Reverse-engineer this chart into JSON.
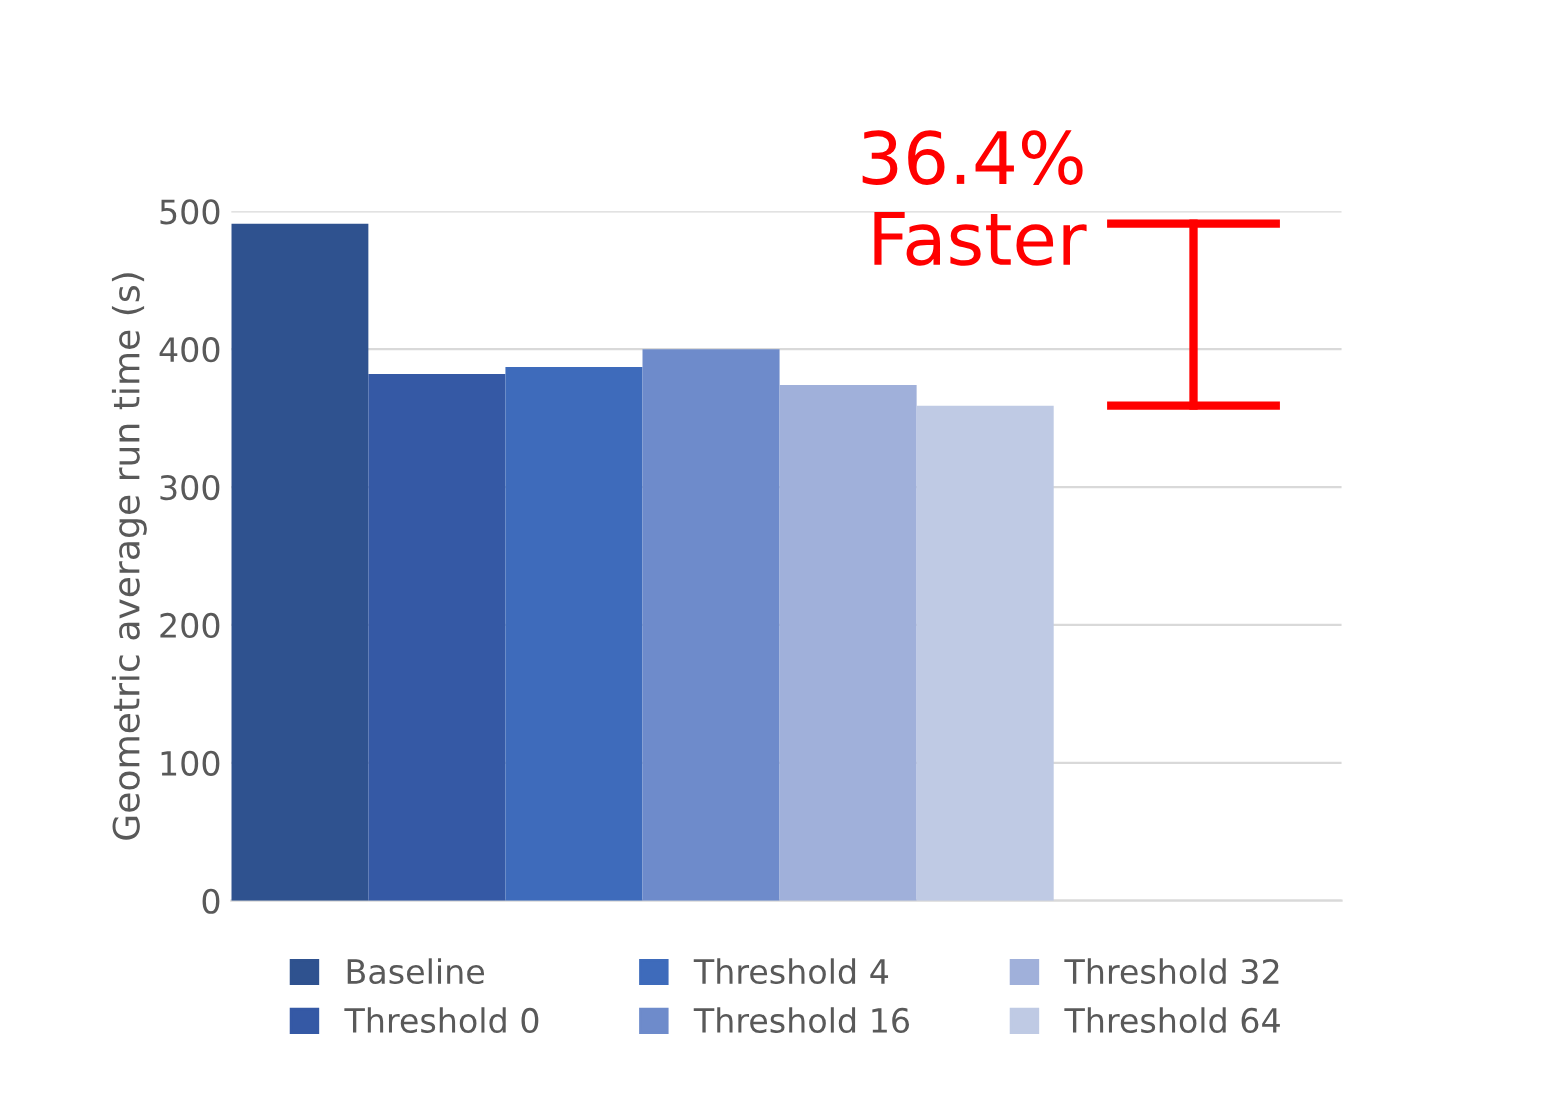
{
  "chart_data": {
    "type": "bar",
    "ylabel": "Geometric average run time (s)",
    "categories": [
      null
    ],
    "series": [
      {
        "name": "Baseline",
        "color": "#2f528f",
        "values": [
          491
        ]
      },
      {
        "name": "Threshold 0",
        "color": "#3559a5",
        "values": [
          382
        ]
      },
      {
        "name": "Threshold 4",
        "color": "#3e6bbb",
        "values": [
          387
        ]
      },
      {
        "name": "Threshold 16",
        "color": "#6e8bcb",
        "values": [
          400
        ]
      },
      {
        "name": "Threshold 32",
        "color": "#a0b0da",
        "values": [
          374
        ]
      },
      {
        "name": "Threshold 64",
        "color": "#bfcae4",
        "values": [
          359
        ]
      }
    ],
    "ylim": [
      0,
      500
    ],
    "yticks": [
      0,
      100,
      200,
      300,
      400,
      500
    ],
    "grid": "y",
    "legend": "bottom",
    "annotations": [
      "36.4% Faster"
    ]
  }
}
